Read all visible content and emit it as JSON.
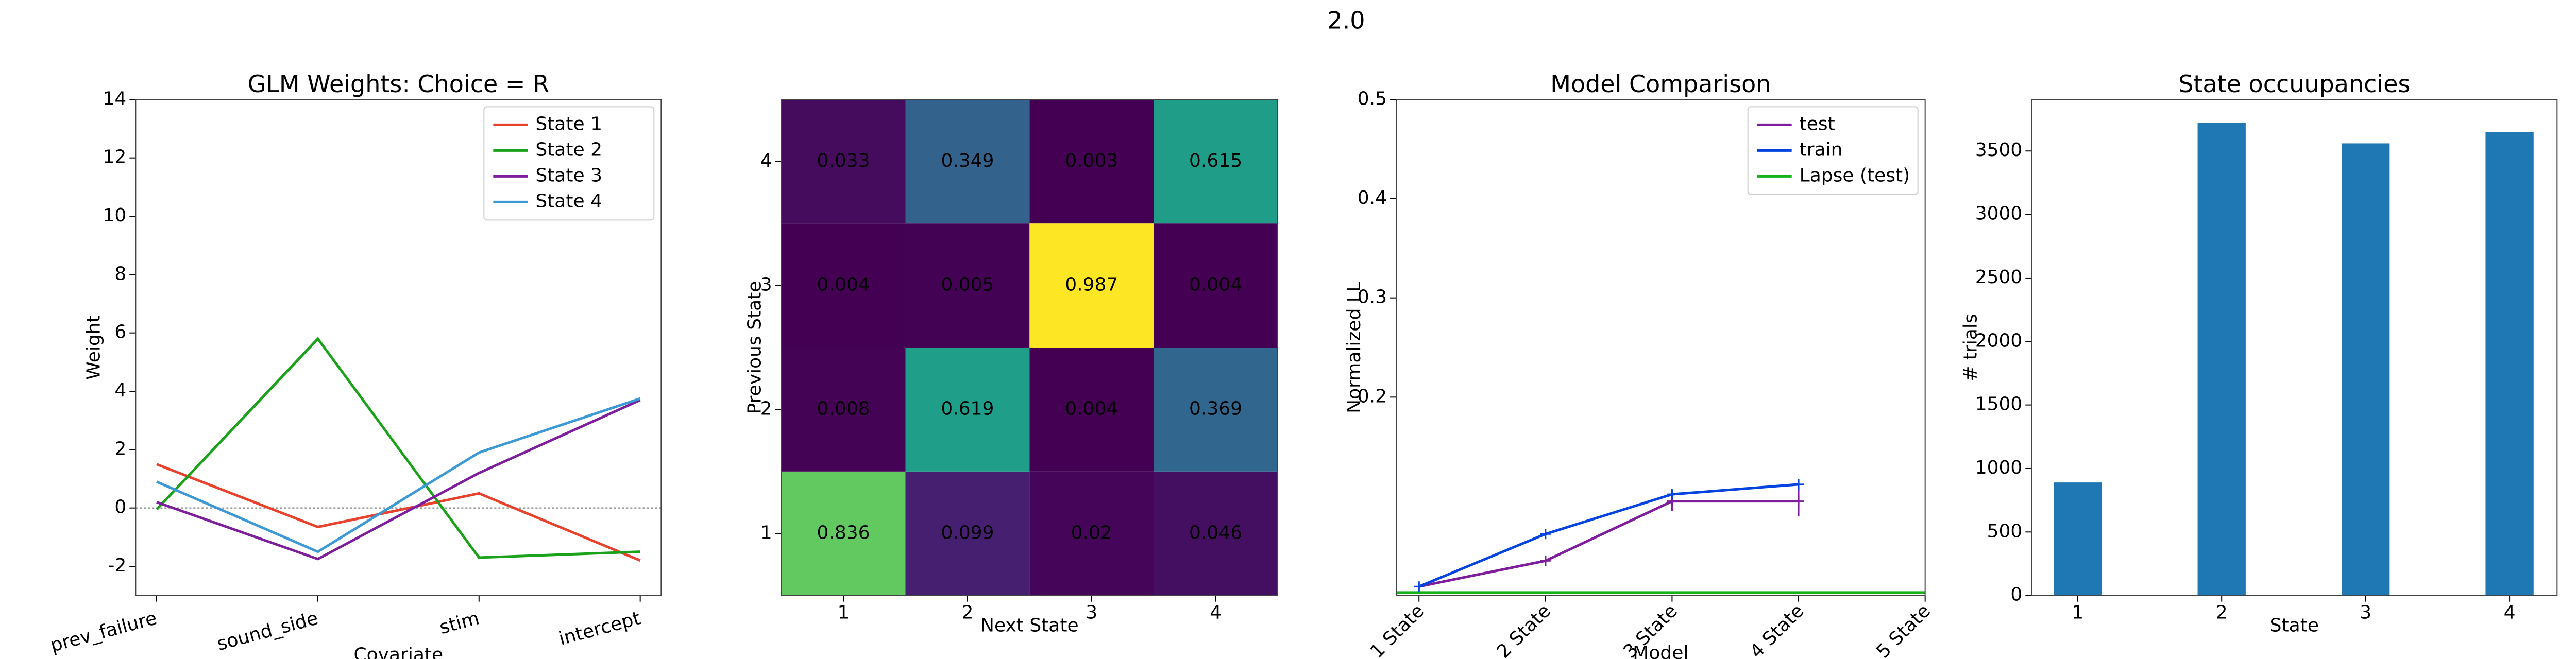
{
  "suptitle": "2.0",
  "chart_data": [
    {
      "type": "line",
      "title": "GLM Weights: Choice = R",
      "xlabel": "Covariate",
      "ylabel": "Weight",
      "categories": [
        "prev_failure",
        "sound_side",
        "stim",
        "intercept"
      ],
      "series": [
        {
          "name": "State 1",
          "color": "#e8412c",
          "values": [
            1.5,
            -0.65,
            0.5,
            -1.8
          ]
        },
        {
          "name": "State 2",
          "color": "#1aa31a",
          "values": [
            -0.05,
            5.8,
            -1.7,
            -1.5
          ]
        },
        {
          "name": "State 3",
          "color": "#7e1e9c",
          "values": [
            0.2,
            -1.75,
            1.2,
            3.7
          ]
        },
        {
          "name": "State 4",
          "color": "#3b9ad6",
          "values": [
            0.9,
            -1.5,
            1.9,
            3.75
          ]
        }
      ],
      "hline": 0,
      "ylim": [
        -3,
        14
      ],
      "yticks": [
        -2,
        0,
        2,
        4,
        6,
        8,
        10,
        12,
        14
      ],
      "legend": "upper right"
    },
    {
      "type": "heatmap",
      "xlabel": "Next State",
      "ylabel": "Previous State",
      "colormap": "viridis",
      "x_categories": [
        1,
        2,
        3,
        4
      ],
      "y_categories": [
        1,
        2,
        3,
        4
      ],
      "rows": [
        [
          0.836,
          0.099,
          0.02,
          0.046
        ],
        [
          0.008,
          0.619,
          0.004,
          0.369
        ],
        [
          0.004,
          0.005,
          0.987,
          0.004
        ],
        [
          0.033,
          0.349,
          0.003,
          0.615
        ]
      ]
    },
    {
      "type": "line",
      "title": "Model Comparison",
      "xlabel": "Model",
      "ylabel": "Normalized LL",
      "xlim": [
        0.82,
        5
      ],
      "xticks": [
        {
          "value": 1,
          "label": "1 State"
        },
        {
          "value": 2,
          "label": "2 State"
        },
        {
          "value": 3,
          "label": "3 State"
        },
        {
          "value": 4,
          "label": "4 State"
        },
        {
          "value": 5,
          "label": "5 State"
        }
      ],
      "ylim": [
        0,
        0.5
      ],
      "yticks": [
        0.2,
        0.3,
        0.4,
        0.5
      ],
      "series": [
        {
          "name": "test",
          "color": "#7e1e9c",
          "x": [
            1,
            2,
            3,
            4
          ],
          "values": [
            0.009,
            0.035,
            0.095,
            0.095
          ],
          "errors": [
            0.002,
            0.005,
            0.01,
            0.015
          ]
        },
        {
          "name": "train",
          "color": "#0343df",
          "x": [
            1,
            2,
            3,
            4
          ],
          "values": [
            0.009,
            0.062,
            0.102,
            0.112
          ]
        }
      ],
      "hlines": [
        {
          "name": "Lapse (test)",
          "color": "#15b01a",
          "value": 0.003
        }
      ],
      "legend": "upper right"
    },
    {
      "type": "bar",
      "title": "State occuupancies",
      "xlabel": "State",
      "ylabel": "# trials",
      "categories": [
        1,
        2,
        3,
        4
      ],
      "values": [
        890,
        3720,
        3560,
        3650
      ],
      "color": "#1f77b4",
      "ylim": [
        0,
        3905
      ],
      "yticks": [
        0,
        500,
        1000,
        1500,
        2000,
        2500,
        3000,
        3500
      ]
    }
  ]
}
